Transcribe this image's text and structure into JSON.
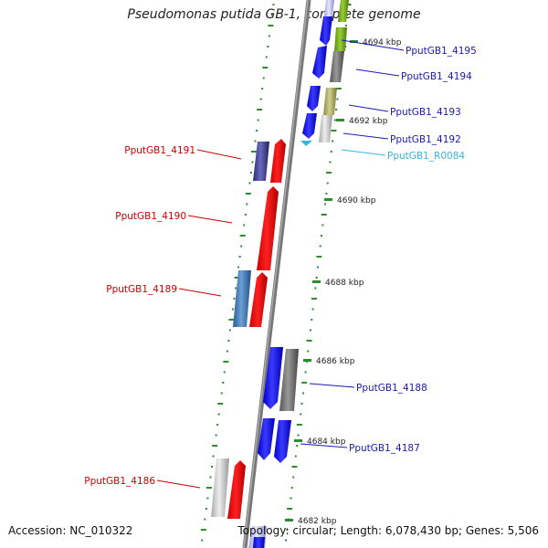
{
  "title": "Pseudomonas putida GB-1, complete genome",
  "footer": {
    "accession": "Accession: NC_010322",
    "summary": "Topology: circular; Length: 6,078,430 bp; Genes: 5,506"
  },
  "ticks": [
    {
      "label": "4694 kbp"
    },
    {
      "label": "4692 kbp"
    },
    {
      "label": "4690 kbp"
    },
    {
      "label": "4688 kbp"
    },
    {
      "label": "4686 kbp"
    },
    {
      "label": "4684 kbp"
    },
    {
      "label": "4682 kbp"
    }
  ],
  "genes_right": [
    {
      "label": "PputGB1_4195",
      "color": "#1a1ab0"
    },
    {
      "label": "PputGB1_4194",
      "color": "#1a1ab0"
    },
    {
      "label": "PputGB1_4193",
      "color": "#1a1ab0"
    },
    {
      "label": "PputGB1_4192",
      "color": "#1a1ab0"
    },
    {
      "label": "PputGB1_R0084",
      "color": "#3ab4e0"
    },
    {
      "label": "PputGB1_4188",
      "color": "#1a1ab0"
    },
    {
      "label": "PputGB1_4187",
      "color": "#1a1ab0"
    }
  ],
  "genes_left": [
    {
      "label": "PputGB1_4191",
      "color": "#cc0000"
    },
    {
      "label": "PputGB1_4190",
      "color": "#cc0000"
    },
    {
      "label": "PputGB1_4189",
      "color": "#cc0000"
    },
    {
      "label": "PputGB1_4186",
      "color": "#cc0000"
    }
  ]
}
